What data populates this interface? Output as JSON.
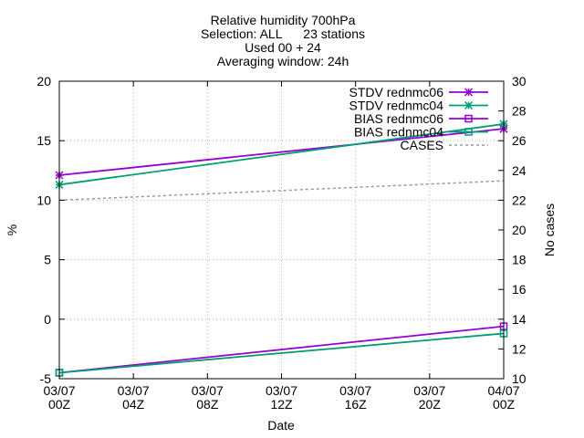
{
  "chart_data": {
    "type": "line",
    "title_lines": [
      "Relative humidity 700hPa",
      "Selection: ALL      23 stations",
      "Used 00 + 24",
      "Averaging window: 24h"
    ],
    "xlabel": "Date",
    "ylabel": "%",
    "y2label": "No cases",
    "x": [
      0,
      24
    ],
    "xlim": [
      0,
      24
    ],
    "x_ticks": [
      {
        "x": 0,
        "line1": "03/07",
        "line2": "00Z"
      },
      {
        "x": 4,
        "line1": "03/07",
        "line2": "04Z"
      },
      {
        "x": 8,
        "line1": "03/07",
        "line2": "08Z"
      },
      {
        "x": 12,
        "line1": "03/07",
        "line2": "12Z"
      },
      {
        "x": 16,
        "line1": "03/07",
        "line2": "16Z"
      },
      {
        "x": 20,
        "line1": "03/07",
        "line2": "20Z"
      },
      {
        "x": 24,
        "line1": "04/07",
        "line2": "00Z"
      }
    ],
    "ylim": [
      -5,
      20
    ],
    "y_ticks": [
      -5,
      0,
      5,
      10,
      15,
      20
    ],
    "y2lim": [
      10,
      30
    ],
    "y2_ticks": [
      10,
      12,
      14,
      16,
      18,
      20,
      22,
      24,
      26,
      28,
      30
    ],
    "grid": true,
    "legend_position": "top-right",
    "series": [
      {
        "name": "STDV rednmc06",
        "axis": "y",
        "values": [
          12.1,
          16.0
        ],
        "color": "#9400d3",
        "marker": "asterisk",
        "dash": false
      },
      {
        "name": "STDV rednmc04",
        "axis": "y",
        "values": [
          11.3,
          16.4
        ],
        "color": "#009e73",
        "marker": "asterisk",
        "dash": false
      },
      {
        "name": "BIAS rednmc06",
        "axis": "y",
        "values": [
          -4.5,
          -0.6
        ],
        "color": "#9400d3",
        "marker": "square",
        "dash": false
      },
      {
        "name": "BIAS rednmc04",
        "axis": "y",
        "values": [
          -4.5,
          -1.2
        ],
        "color": "#009e73",
        "marker": "square",
        "dash": false
      },
      {
        "name": "CASES",
        "axis": "y2",
        "values": [
          22,
          23.3
        ],
        "color": "#999999",
        "marker": "none",
        "dash": true
      }
    ]
  }
}
